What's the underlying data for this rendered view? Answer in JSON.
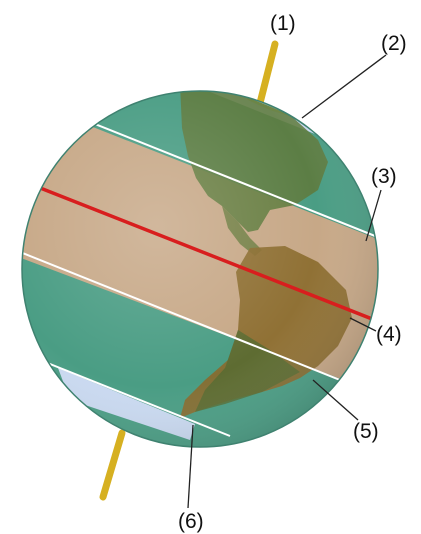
{
  "labels": {
    "axis_top": "(1)",
    "arctic_circle": "(2)",
    "tropic_of_cancer": "(3)",
    "equator": "(4)",
    "tropic_of_capricorn": "(5)",
    "antarctic_circle": "(6)"
  },
  "colors": {
    "ocean_polar": "#4a9d84",
    "ocean_tropical": "#c7a887",
    "equator_line": "#d81e1e",
    "axis": "#d6b021",
    "ice": "#c9d9f0",
    "land": "#5f7a3c",
    "circle_line": "#ffffff",
    "callout_line": "#222222"
  }
}
